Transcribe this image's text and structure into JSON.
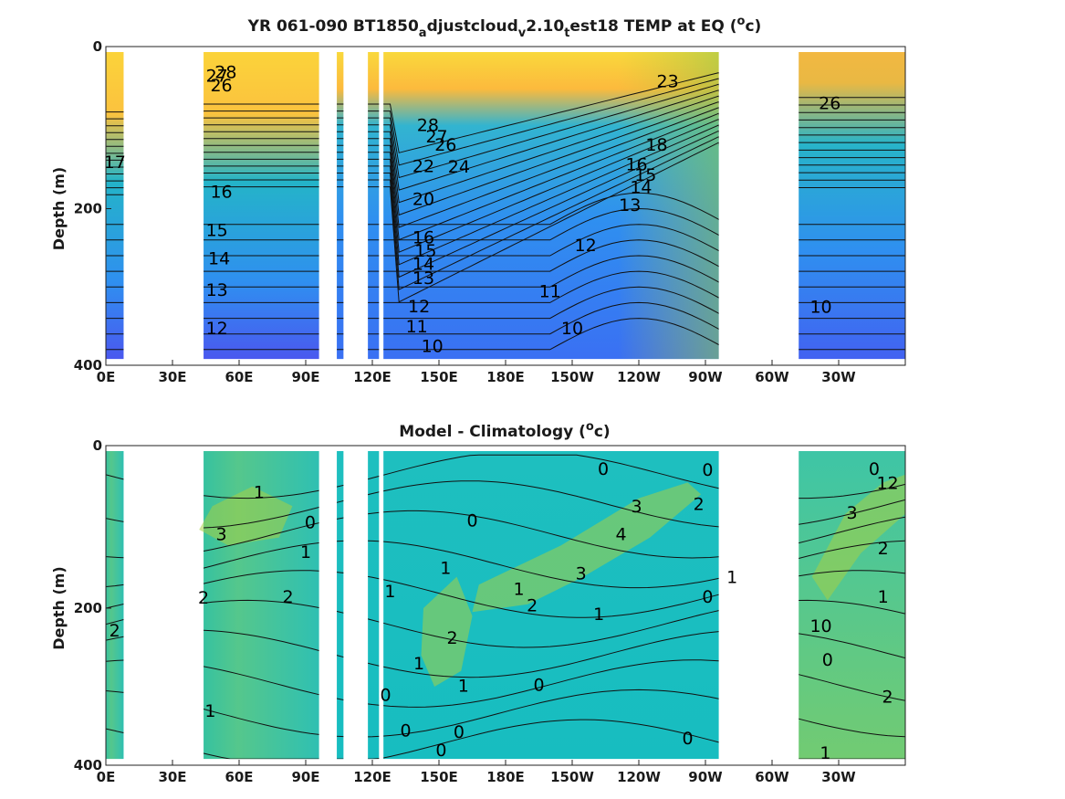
{
  "chart_data": [
    {
      "type": "heatmap",
      "title": "YR 061-090 BT1850",
      "title_parts": [
        "YR 061-090 BT1850",
        "a",
        "djustcloud",
        "v",
        "2.10",
        "t",
        "est18 TEMP at EQ (",
        "o",
        "c)"
      ],
      "ylabel": "Depth (m)",
      "ylim": [
        0,
        400
      ],
      "y_reversed": true,
      "yticks": [
        "0",
        "200",
        "400"
      ],
      "xticks": [
        "0E",
        "30E",
        "60E",
        "90E",
        "120E",
        "150E",
        "180E",
        "150W",
        "120W",
        "90W",
        "60W",
        "30W"
      ],
      "xlim": [
        0,
        360
      ],
      "colormap": "parula",
      "color_range": [
        8,
        30
      ],
      "land_gaps_lon": [
        [
          8,
          44
        ],
        [
          96,
          104
        ],
        [
          107,
          118
        ],
        [
          123,
          125
        ],
        [
          276,
          312
        ]
      ],
      "contour_labels": [
        {
          "text": "28",
          "lon": 54,
          "depth": 25
        },
        {
          "text": "27",
          "lon": 50,
          "depth": 30
        },
        {
          "text": "26",
          "lon": 52,
          "depth": 42
        },
        {
          "text": "17",
          "lon": 4,
          "depth": 140
        },
        {
          "text": "16",
          "lon": 52,
          "depth": 178
        },
        {
          "text": "15",
          "lon": 50,
          "depth": 227
        },
        {
          "text": "14",
          "lon": 51,
          "depth": 263
        },
        {
          "text": "13",
          "lon": 50,
          "depth": 303
        },
        {
          "text": "12",
          "lon": 50,
          "depth": 352
        },
        {
          "text": "28",
          "lon": 145,
          "depth": 93
        },
        {
          "text": "27",
          "lon": 149,
          "depth": 107
        },
        {
          "text": "26",
          "lon": 153,
          "depth": 118
        },
        {
          "text": "24",
          "lon": 159,
          "depth": 146
        },
        {
          "text": "22",
          "lon": 143,
          "depth": 145
        },
        {
          "text": "20",
          "lon": 143,
          "depth": 187
        },
        {
          "text": "16",
          "lon": 143,
          "depth": 236
        },
        {
          "text": "15",
          "lon": 144,
          "depth": 253
        },
        {
          "text": "14",
          "lon": 143,
          "depth": 270
        },
        {
          "text": "13",
          "lon": 143,
          "depth": 288
        },
        {
          "text": "12",
          "lon": 141,
          "depth": 324
        },
        {
          "text": "11",
          "lon": 140,
          "depth": 350
        },
        {
          "text": "10",
          "lon": 147,
          "depth": 375
        },
        {
          "text": "10",
          "lon": 210,
          "depth": 352
        },
        {
          "text": "11",
          "lon": 200,
          "depth": 305
        },
        {
          "text": "12",
          "lon": 216,
          "depth": 246
        },
        {
          "text": "13",
          "lon": 236,
          "depth": 195
        },
        {
          "text": "14",
          "lon": 241,
          "depth": 172
        },
        {
          "text": "15",
          "lon": 243,
          "depth": 156
        },
        {
          "text": "16",
          "lon": 239,
          "depth": 143
        },
        {
          "text": "18",
          "lon": 248,
          "depth": 118
        },
        {
          "text": "23",
          "lon": 253,
          "depth": 37
        },
        {
          "text": "26",
          "lon": 326,
          "depth": 65
        },
        {
          "text": "10",
          "lon": 322,
          "depth": 325
        }
      ]
    },
    {
      "type": "heatmap",
      "title": "Model - Climatology (",
      "title_parts": [
        "Model - Climatology (",
        "o",
        "c)"
      ],
      "ylabel": "Depth (m)",
      "ylim": [
        0,
        400
      ],
      "y_reversed": true,
      "yticks": [
        "0",
        "200",
        "400"
      ],
      "xticks": [
        "0E",
        "30E",
        "60E",
        "90E",
        "120E",
        "150E",
        "180E",
        "150W",
        "120W",
        "90W",
        "60W",
        "30W"
      ],
      "xlim": [
        0,
        360
      ],
      "colormap": "parula",
      "color_range": [
        -3,
        6
      ],
      "land_gaps_lon": [
        [
          8,
          44
        ],
        [
          96,
          104
        ],
        [
          107,
          118
        ],
        [
          123,
          125
        ],
        [
          276,
          312
        ]
      ],
      "contour_labels": [
        {
          "text": "1",
          "lon": 69,
          "depth": 52
        },
        {
          "text": "3",
          "lon": 52,
          "depth": 105
        },
        {
          "text": "0",
          "lon": 92,
          "depth": 90
        },
        {
          "text": "1",
          "lon": 90,
          "depth": 128
        },
        {
          "text": "2",
          "lon": 82,
          "depth": 185
        },
        {
          "text": "2",
          "lon": 44,
          "depth": 186
        },
        {
          "text": "2",
          "lon": 4,
          "depth": 228
        },
        {
          "text": "1",
          "lon": 47,
          "depth": 330
        },
        {
          "text": "0",
          "lon": 165,
          "depth": 88
        },
        {
          "text": "1",
          "lon": 153,
          "depth": 148
        },
        {
          "text": "1",
          "lon": 128,
          "depth": 178
        },
        {
          "text": "2",
          "lon": 156,
          "depth": 237
        },
        {
          "text": "1",
          "lon": 141,
          "depth": 270
        },
        {
          "text": "1",
          "lon": 161,
          "depth": 298
        },
        {
          "text": "0",
          "lon": 195,
          "depth": 297
        },
        {
          "text": "0",
          "lon": 126,
          "depth": 310
        },
        {
          "text": "0",
          "lon": 135,
          "depth": 355
        },
        {
          "text": "0",
          "lon": 159,
          "depth": 357
        },
        {
          "text": "0",
          "lon": 151,
          "depth": 380
        },
        {
          "text": "0",
          "lon": 224,
          "depth": 22
        },
        {
          "text": "3",
          "lon": 239,
          "depth": 70
        },
        {
          "text": "4",
          "lon": 232,
          "depth": 105
        },
        {
          "text": "3",
          "lon": 214,
          "depth": 155
        },
        {
          "text": "1",
          "lon": 186,
          "depth": 175
        },
        {
          "text": "2",
          "lon": 192,
          "depth": 196
        },
        {
          "text": "1",
          "lon": 222,
          "depth": 207
        },
        {
          "text": "2",
          "lon": 267,
          "depth": 67
        },
        {
          "text": "0",
          "lon": 271,
          "depth": 23
        },
        {
          "text": "0",
          "lon": 271,
          "depth": 185
        },
        {
          "text": "1",
          "lon": 282,
          "depth": 160
        },
        {
          "text": "0",
          "lon": 262,
          "depth": 365
        },
        {
          "text": "0",
          "lon": 346,
          "depth": 22
        },
        {
          "text": "12",
          "lon": 352,
          "depth": 40
        },
        {
          "text": "3",
          "lon": 336,
          "depth": 78
        },
        {
          "text": "2",
          "lon": 350,
          "depth": 123
        },
        {
          "text": "1",
          "lon": 350,
          "depth": 185
        },
        {
          "text": "10",
          "lon": 322,
          "depth": 222
        },
        {
          "text": "0",
          "lon": 325,
          "depth": 265
        },
        {
          "text": "2",
          "lon": 352,
          "depth": 312
        },
        {
          "text": "1",
          "lon": 324,
          "depth": 384
        }
      ]
    }
  ]
}
